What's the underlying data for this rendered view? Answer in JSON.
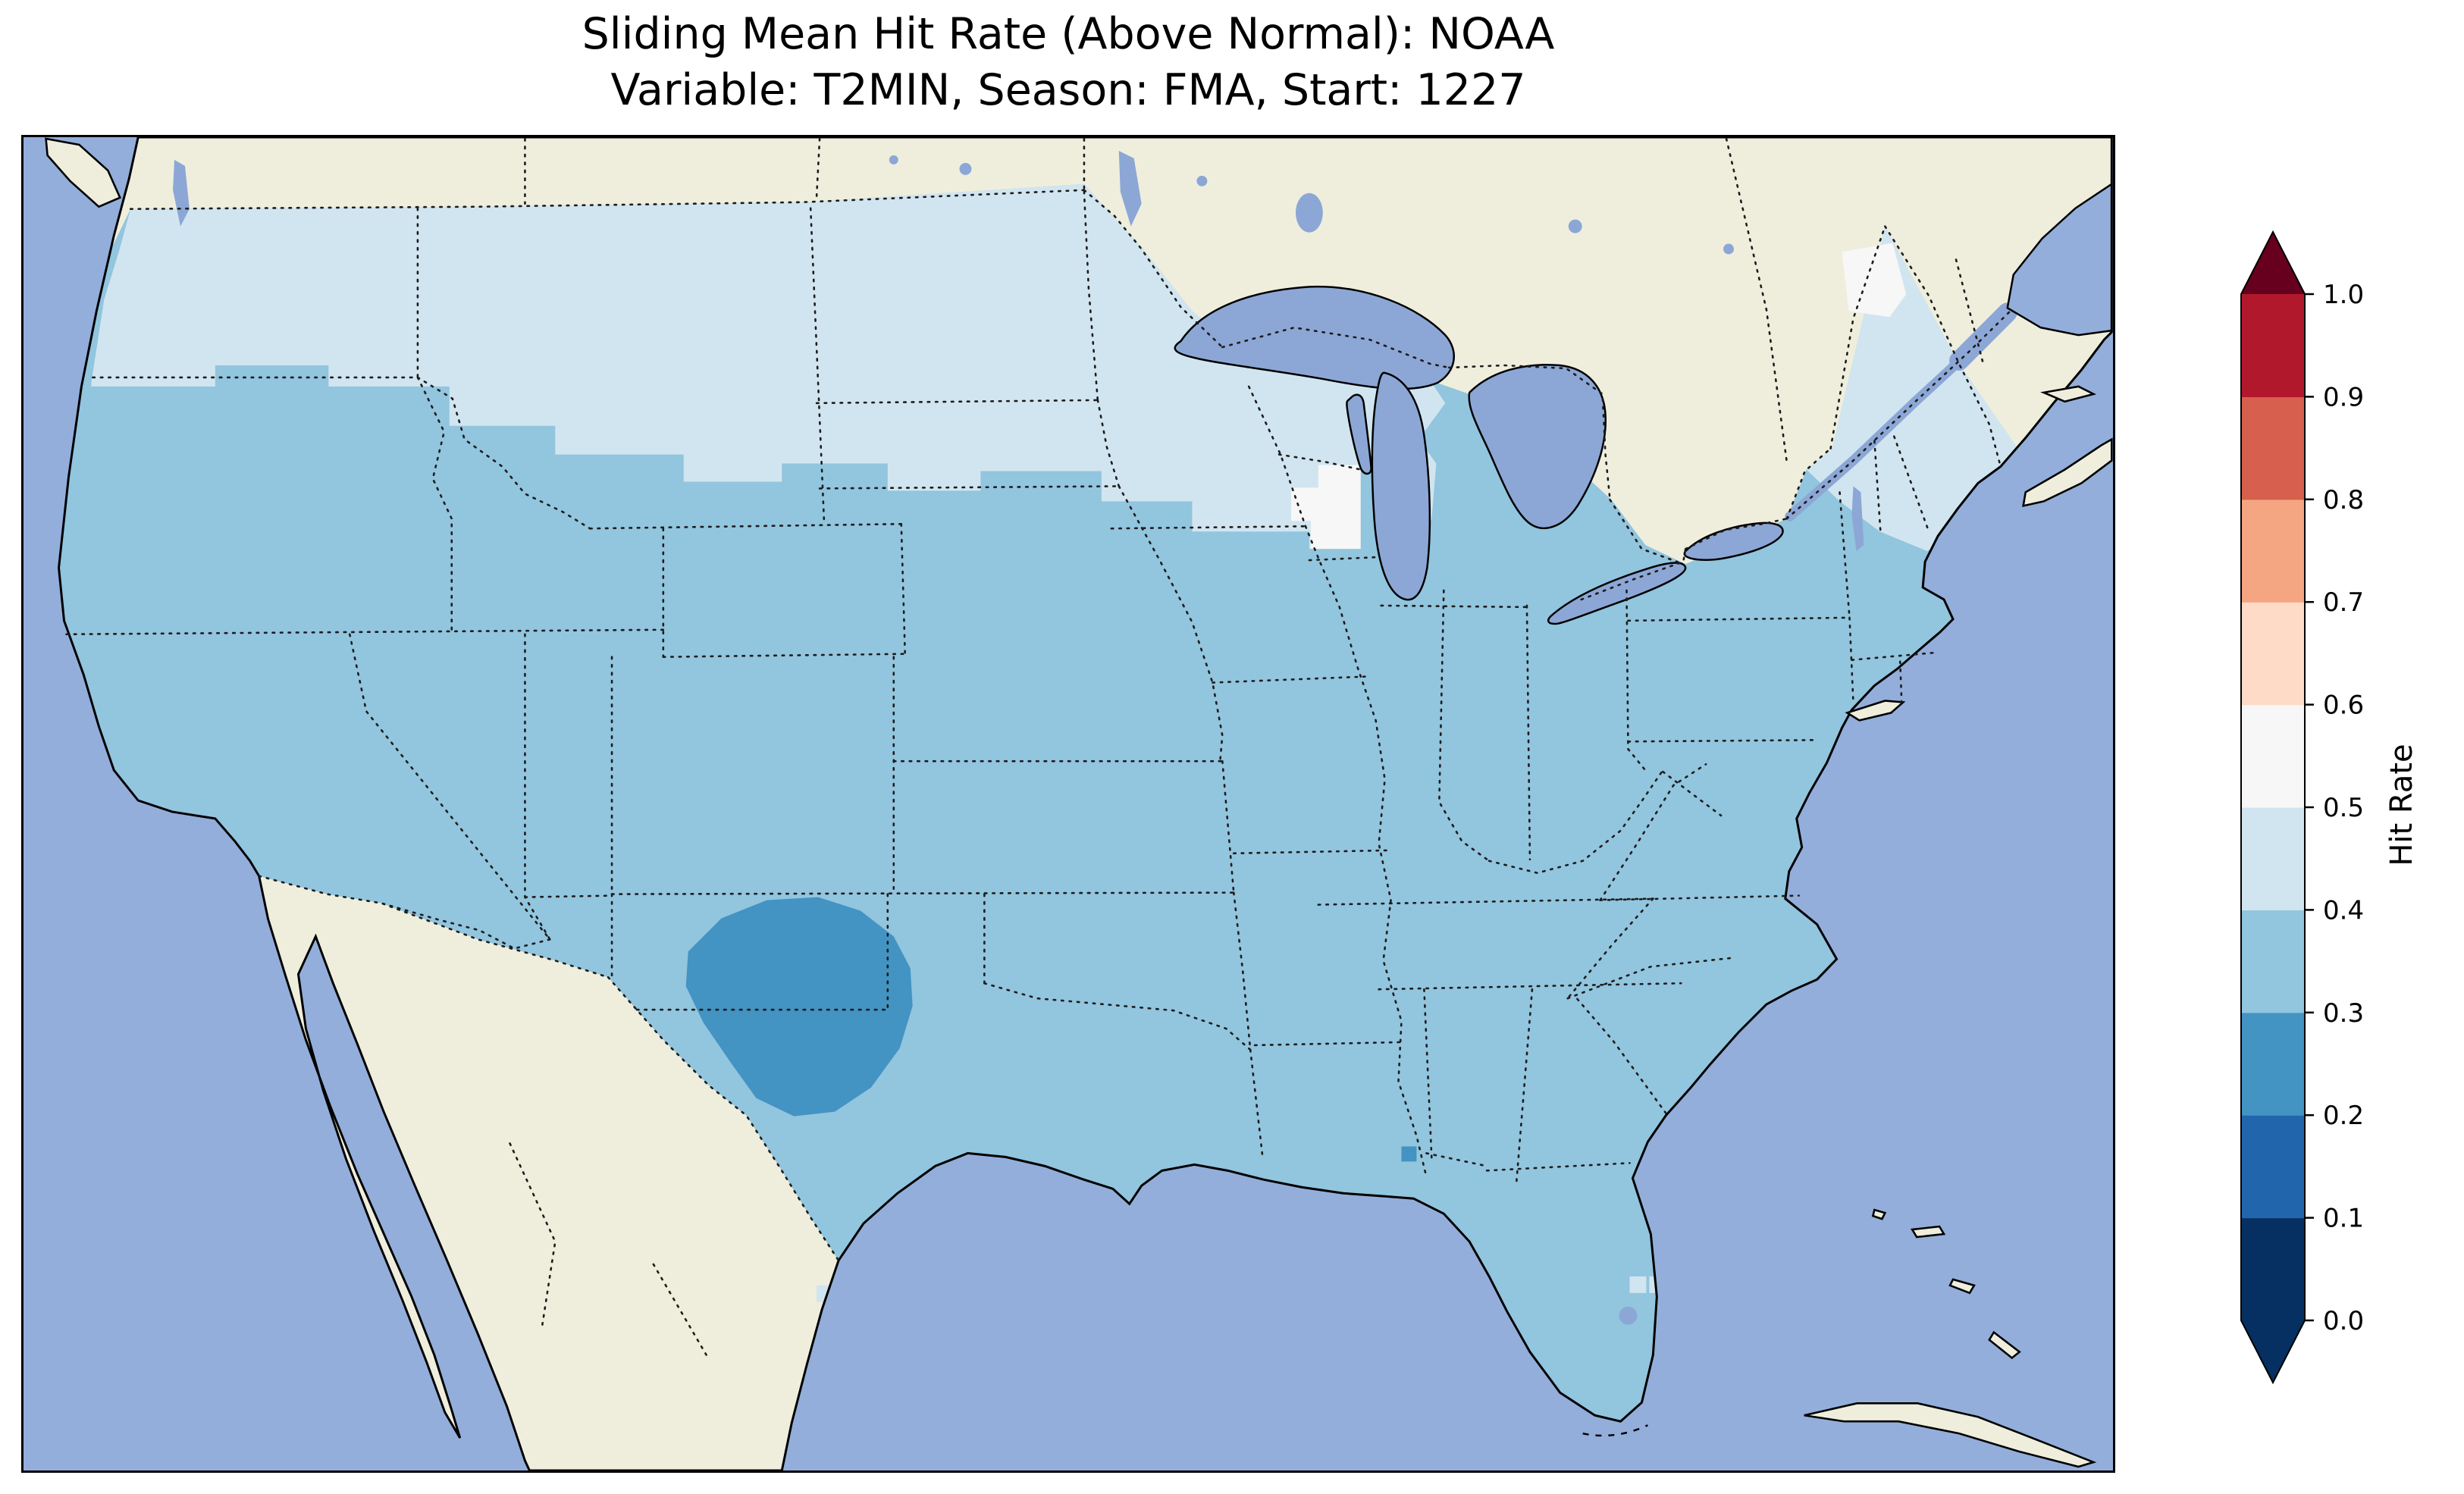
{
  "figure": {
    "title_line1": "Sliding Mean Hit Rate (Above Normal): NOAA",
    "title_line2": "Variable: T2MIN, Season: FMA, Start: 1227"
  },
  "colorbar": {
    "label": "Hit Rate",
    "ticks": [
      "0.0",
      "0.1",
      "0.2",
      "0.3",
      "0.4",
      "0.5",
      "0.6",
      "0.7",
      "0.8",
      "0.9",
      "1.0"
    ],
    "segment_colors_bottom_to_top": [
      "#053061",
      "#2166ac",
      "#4393c3",
      "#92c5de",
      "#d1e5f0",
      "#f7f7f7",
      "#fddbc7",
      "#f4a582",
      "#d6604d",
      "#b2182b"
    ],
    "extend_under_color": "#053061",
    "extend_over_color": "#67001f"
  },
  "chart_data": {
    "type": "heatmap",
    "title": "Sliding Mean Hit Rate (Above Normal): NOAA",
    "subtitle": "Variable: T2MIN, Season: FMA, Start: 1227",
    "variable": "T2MIN",
    "season": "FMA",
    "start": "1227",
    "geography": "Contiguous United States (gridded hit-rate field over CONUS, surrounding Canada/Mexico masked as land)",
    "colorbar_label": "Hit Rate",
    "colorbar_ticks": [
      0.0,
      0.1,
      0.2,
      0.3,
      0.4,
      0.5,
      0.6,
      0.7,
      0.8,
      0.9,
      1.0
    ],
    "colorbar_extends": "both",
    "colormap": "RdBu_r (discrete, 0.1 bins)",
    "map_colors": {
      "ocean": "#93aeda",
      "land": "#efeedd",
      "lake": "#8ca7d6"
    },
    "bin_colors": {
      "0.2-0.3": "#4393c3",
      "0.3-0.4": "#92c5de",
      "0.4-0.5": "#d1e5f0",
      "0.5-0.6": "#f7f7f7"
    },
    "regions": [
      {
        "area": "most of CONUS (base field)",
        "hit_rate_bin": "0.3-0.4",
        "color": "#92c5de"
      },
      {
        "area": "Pacific Northwest, northern Rockies, northern Plains, Minnesota, Wisconsin, upper Midwest",
        "hit_rate_bin": "0.4-0.5",
        "color": "#d1e5f0"
      },
      {
        "area": "eastern Wisconsin patch near Lake Michigan",
        "hit_rate_bin": "0.5-0.6",
        "color": "#f7f7f7"
      },
      {
        "area": "northern Maine patch",
        "hit_rate_bin": "0.5-0.6",
        "color": "#f7f7f7"
      },
      {
        "area": "west Texas / eastern New Mexico blob (Panhandle region)",
        "hit_rate_bin": "0.2-0.3",
        "color": "#4393c3"
      },
      {
        "area": "isolated coastal cells near southern Florida",
        "hit_rate_bin": "0.4-0.6",
        "color": "#d1e5f0"
      },
      {
        "area": "isolated darker cell near Mobile Bay coast",
        "hit_rate_bin": "0.2-0.3",
        "color": "#4393c3"
      }
    ]
  }
}
